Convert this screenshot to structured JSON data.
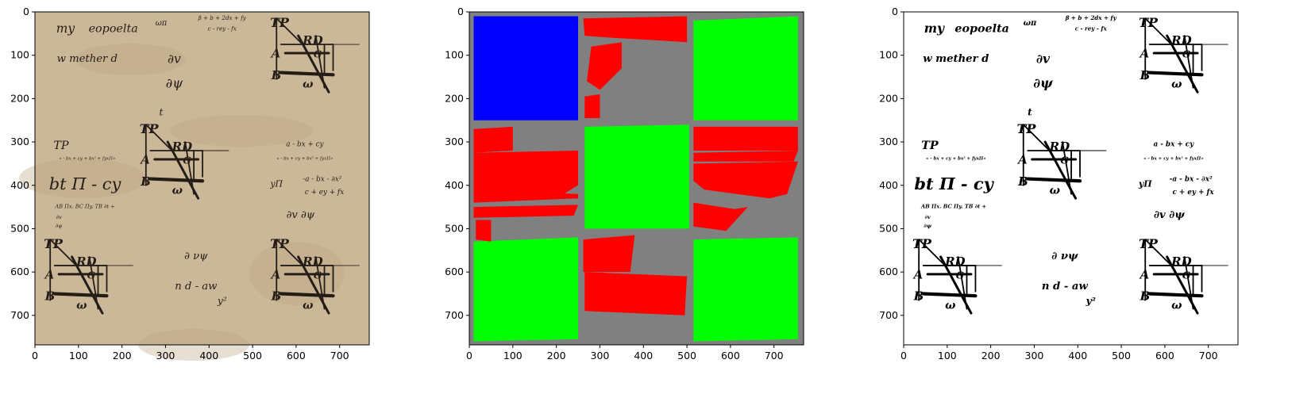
{
  "figure": {
    "panels": [
      {
        "id": "panel-manuscript",
        "xticks": [
          "0",
          "100",
          "200",
          "300",
          "400",
          "500",
          "600",
          "700"
        ],
        "yticks": [
          "0",
          "100",
          "200",
          "300",
          "400",
          "500",
          "600",
          "700"
        ],
        "paper_color": "#cbb898",
        "ink_color": "#241c16",
        "texts": [
          {
            "t": "my",
            "x": 70,
            "y": 30,
            "s": 28
          },
          {
            "t": "eopoelta",
            "x": 180,
            "y": 30,
            "s": 26
          },
          {
            "t": "ωπ",
            "x": 290,
            "y": 20,
            "s": 18
          },
          {
            "t": "β + b + 2dx + fy",
            "x": 430,
            "y": 10,
            "s": 13
          },
          {
            "t": "c - rey - fx",
            "x": 430,
            "y": 35,
            "s": 13
          },
          {
            "t": "w mether d",
            "x": 120,
            "y": 100,
            "s": 24
          },
          {
            "t": "∂v",
            "x": 320,
            "y": 100,
            "s": 28
          },
          {
            "t": "∂ψ",
            "x": 320,
            "y": 155,
            "s": 30
          },
          {
            "t": "t",
            "x": 290,
            "y": 225,
            "s": 22
          },
          {
            "t": "TP",
            "x": 60,
            "y": 300,
            "s": 26
          },
          {
            "t": "« - bx + cy + bx²  + fyxΠ»",
            "x": 120,
            "y": 335,
            "s": 10
          },
          {
            "t": "bt Π - cy",
            "x": 115,
            "y": 385,
            "s": 38
          },
          {
            "t": "AB Πx. BC Πy. TB ∂t +",
            "x": 115,
            "y": 445,
            "s": 12
          },
          {
            "t": "∂v",
            "x": 55,
            "y": 470,
            "s": 12
          },
          {
            "t": "∂ψ",
            "x": 55,
            "y": 490,
            "s": 12
          },
          {
            "t": "a - bx + cy",
            "x": 620,
            "y": 300,
            "s": 16
          },
          {
            "t": "« - bx + cy + bx² + fyxΠ»",
            "x": 620,
            "y": 335,
            "s": 10
          },
          {
            "t": "yΠ",
            "x": 555,
            "y": 390,
            "s": 20
          },
          {
            "t": "-a - bx - ∂x²",
            "x": 660,
            "y": 380,
            "s": 16
          },
          {
            "t": "c + ey + fx",
            "x": 665,
            "y": 410,
            "s": 16
          },
          {
            "t": "∂v ∂ψ",
            "x": 610,
            "y": 460,
            "s": 24
          },
          {
            "t": "∂ νψ",
            "x": 370,
            "y": 555,
            "s": 24
          },
          {
            "t": "n  d - aw",
            "x": 370,
            "y": 625,
            "s": 24
          },
          {
            "t": "y²",
            "x": 430,
            "y": 660,
            "s": 22
          }
        ]
      },
      {
        "id": "panel-segmentation",
        "xticks": [
          "0",
          "100",
          "200",
          "300",
          "400",
          "500",
          "600",
          "700"
        ],
        "yticks": [
          "0",
          "100",
          "200",
          "300",
          "400",
          "500",
          "600",
          "700"
        ],
        "background_color": "#808080",
        "colors": {
          "blue": "#0000ff",
          "green": "#00ff00",
          "red": "#ff0000"
        },
        "regions": [
          {
            "kind": "blue",
            "points": [
              [
                10,
                10
              ],
              [
                250,
                10
              ],
              [
                250,
                250
              ],
              [
                10,
                250
              ]
            ]
          },
          {
            "kind": "green",
            "points": [
              [
                515,
                20
              ],
              [
                755,
                10
              ],
              [
                755,
                250
              ],
              [
                515,
                250
              ]
            ]
          },
          {
            "kind": "green",
            "points": [
              [
                265,
                265
              ],
              [
                505,
                260
              ],
              [
                505,
                500
              ],
              [
                265,
                500
              ]
            ]
          },
          {
            "kind": "green",
            "points": [
              [
                10,
                530
              ],
              [
                250,
                520
              ],
              [
                250,
                755
              ],
              [
                10,
                760
              ]
            ]
          },
          {
            "kind": "green",
            "points": [
              [
                515,
                525
              ],
              [
                755,
                520
              ],
              [
                755,
                755
              ],
              [
                515,
                760
              ]
            ]
          },
          {
            "kind": "red",
            "points": [
              [
                262,
                15
              ],
              [
                500,
                10
              ],
              [
                500,
                70
              ],
              [
                420,
                65
              ],
              [
                330,
                60
              ],
              [
                265,
                55
              ]
            ]
          },
          {
            "kind": "red",
            "points": [
              [
                280,
                80
              ],
              [
                350,
                70
              ],
              [
                350,
                130
              ],
              [
                300,
                180
              ],
              [
                270,
                160
              ]
            ]
          },
          {
            "kind": "red",
            "points": [
              [
                265,
                195
              ],
              [
                300,
                190
              ],
              [
                300,
                245
              ],
              [
                265,
                245
              ]
            ]
          },
          {
            "kind": "red",
            "points": [
              [
                10,
                270
              ],
              [
                100,
                265
              ],
              [
                100,
                320
              ],
              [
                10,
                325
              ]
            ]
          },
          {
            "kind": "red",
            "points": [
              [
                10,
                325
              ],
              [
                250,
                320
              ],
              [
                250,
                400
              ],
              [
                200,
                430
              ],
              [
                10,
                410
              ]
            ]
          },
          {
            "kind": "red",
            "points": [
              [
                10,
                410
              ],
              [
                250,
                420
              ],
              [
                250,
                430
              ],
              [
                10,
                440
              ]
            ]
          },
          {
            "kind": "red",
            "points": [
              [
                10,
                450
              ],
              [
                250,
                445
              ],
              [
                240,
                470
              ],
              [
                10,
                475
              ]
            ]
          },
          {
            "kind": "red",
            "points": [
              [
                15,
                480
              ],
              [
                50,
                480
              ],
              [
                50,
                530
              ],
              [
                15,
                525
              ]
            ]
          },
          {
            "kind": "red",
            "points": [
              [
                515,
                265
              ],
              [
                755,
                265
              ],
              [
                755,
                320
              ],
              [
                515,
                320
              ]
            ]
          },
          {
            "kind": "red",
            "points": [
              [
                515,
                325
              ],
              [
                755,
                320
              ],
              [
                745,
                345
              ],
              [
                515,
                345
              ]
            ]
          },
          {
            "kind": "red",
            "points": [
              [
                515,
                350
              ],
              [
                755,
                345
              ],
              [
                730,
                420
              ],
              [
                690,
                430
              ],
              [
                540,
                410
              ],
              [
                515,
                390
              ]
            ]
          },
          {
            "kind": "red",
            "points": [
              [
                515,
                440
              ],
              [
                610,
                455
              ],
              [
                640,
                450
              ],
              [
                590,
                505
              ],
              [
                515,
                495
              ]
            ]
          },
          {
            "kind": "red",
            "points": [
              [
                262,
                525
              ],
              [
                380,
                515
              ],
              [
                370,
                600
              ],
              [
                262,
                600
              ]
            ]
          },
          {
            "kind": "red",
            "points": [
              [
                265,
                600
              ],
              [
                500,
                610
              ],
              [
                495,
                700
              ],
              [
                265,
                690
              ]
            ]
          }
        ]
      },
      {
        "id": "panel-binarized",
        "xticks": [
          "0",
          "100",
          "200",
          "300",
          "400",
          "500",
          "600",
          "700"
        ],
        "yticks": [
          "0",
          "100",
          "200",
          "300",
          "400",
          "500",
          "600",
          "700"
        ],
        "paper_color": "#ffffff",
        "ink_color": "#000000"
      }
    ]
  }
}
